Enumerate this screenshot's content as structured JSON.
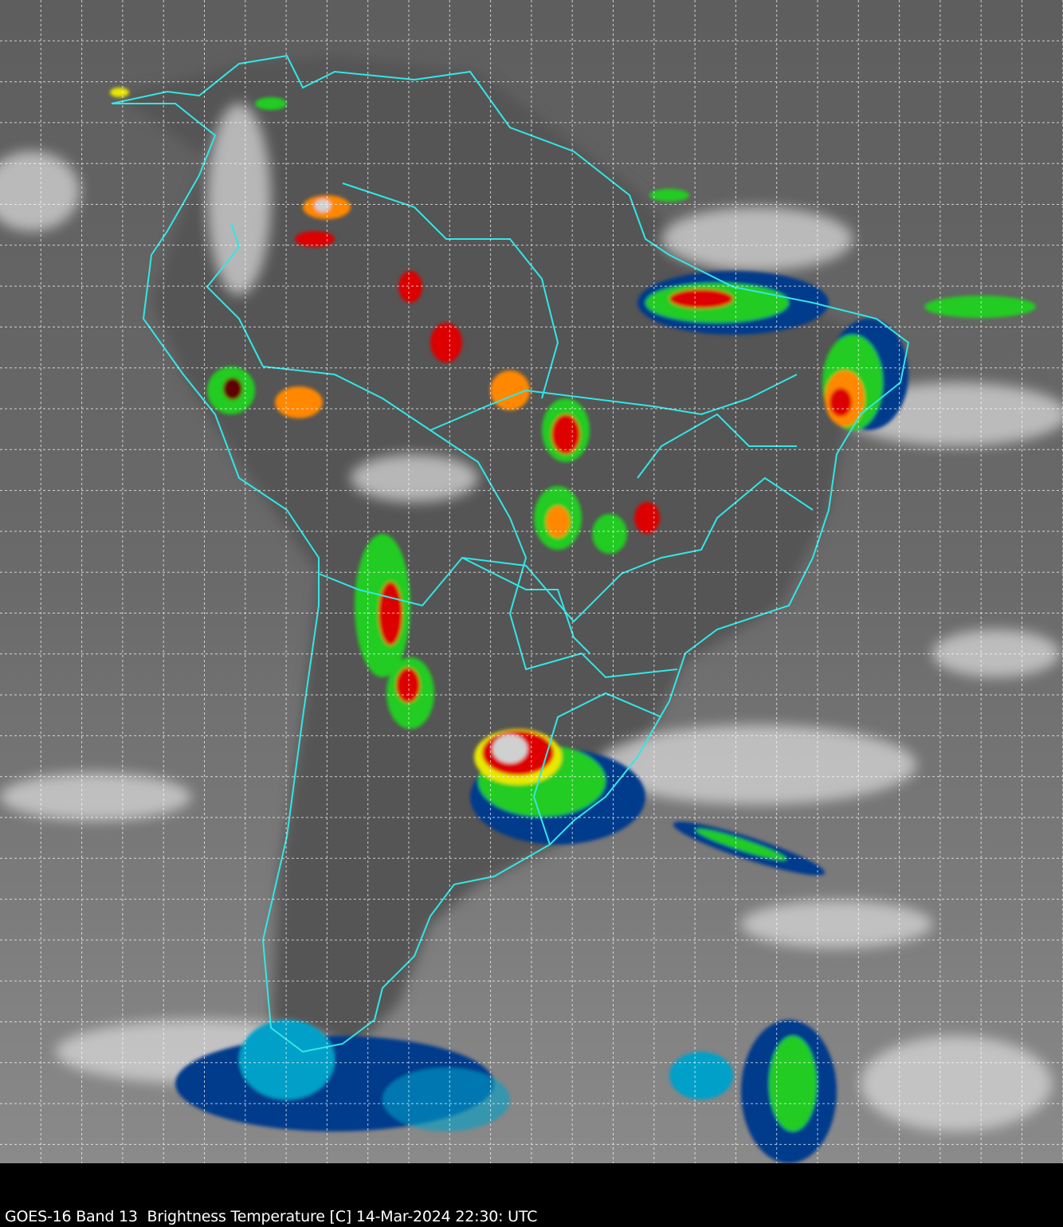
{
  "caption": "GOES-16 Band 13  Brightness Temperature [C] 14-Mar-2024 22:30: UTC",
  "colors": {
    "background_ocean": "#6e6e6e",
    "border_lines": "#33e6e6",
    "grid_lines": "#ffffff",
    "caption_bar": "#000000",
    "cold_tops_palette": [
      "#003a8c",
      "#00a0c8",
      "#22cc22",
      "#e8e800",
      "#ff8800",
      "#dd0000",
      "#600000",
      "#d0d0d0"
    ]
  },
  "map": {
    "grid": true,
    "grid_style": "dashed",
    "region": "South America"
  }
}
